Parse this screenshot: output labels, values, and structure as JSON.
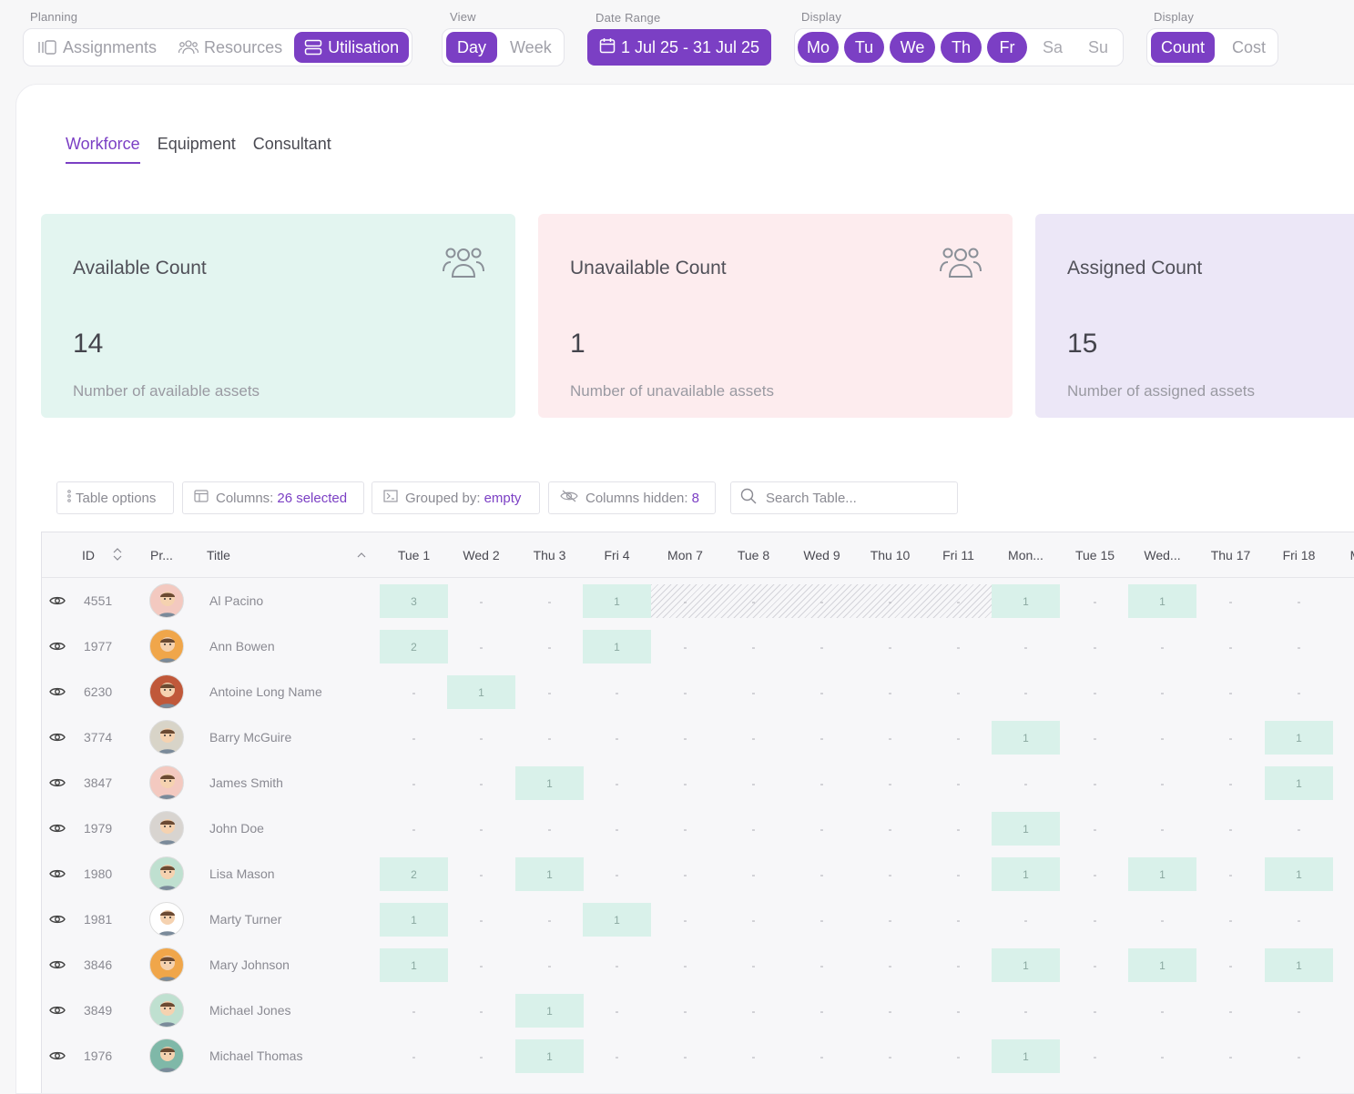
{
  "topbar": {
    "planning": {
      "label": "Planning",
      "items": [
        "Assignments",
        "Resources",
        "Utilisation"
      ],
      "active": 2
    },
    "view": {
      "label": "View",
      "items": [
        "Day",
        "Week"
      ],
      "active": 0
    },
    "date_range": {
      "label": "Date Range",
      "value": "1 Jul 25 - 31 Jul 25"
    },
    "display_days": {
      "label": "Display",
      "items": [
        "Mo",
        "Tu",
        "We",
        "Th",
        "Fr",
        "Sa",
        "Su"
      ],
      "active": [
        0,
        1,
        2,
        3,
        4
      ]
    },
    "display_metric": {
      "label": "Display",
      "items": [
        "Count",
        "Cost"
      ],
      "active": 0
    }
  },
  "tabs": [
    "Workforce",
    "Equipment",
    "Consultant"
  ],
  "cards": [
    {
      "title": "Available Count",
      "value": "14",
      "subtitle": "Number of available assets",
      "bg": "#e3f5f0",
      "icon": "people-icon"
    },
    {
      "title": "Unavailable Count",
      "value": "1",
      "subtitle": "Number of unavailable assets",
      "bg": "#fdecee",
      "icon": "people-icon"
    },
    {
      "title": "Assigned Count",
      "value": "15",
      "subtitle": "Number of assigned assets",
      "bg": "#ece7f7",
      "icon": "people-icon"
    }
  ],
  "toolbar": {
    "table_options": "Table options",
    "columns_label": "Columns:",
    "columns_value": "26 selected",
    "grouped_label": "Grouped by:",
    "grouped_value": "empty",
    "hidden_label": "Columns hidden:",
    "hidden_value": "8",
    "search_placeholder": "Search Table..."
  },
  "table": {
    "headers": {
      "id": "ID",
      "profile": "Pr...",
      "title": "Title"
    },
    "days": [
      "Tue 1",
      "Wed 2",
      "Thu 3",
      "Fri 4",
      "Mon 7",
      "Tue 8",
      "Wed 9",
      "Thu 10",
      "Fri 11",
      "Mon...",
      "Tue 15",
      "Wed...",
      "Thu 17",
      "Fri 18",
      "M"
    ],
    "rows": [
      {
        "id": "4551",
        "name": "Al Pacino",
        "cells": [
          "3",
          "-",
          "-",
          "1",
          "-",
          "-",
          "-",
          "-",
          "-",
          "1",
          "-",
          "1",
          "-",
          "-"
        ],
        "hatch": [
          4,
          8
        ],
        "avatar": "#f3c9c0"
      },
      {
        "id": "1977",
        "name": "Ann Bowen",
        "cells": [
          "2",
          "-",
          "-",
          "1",
          "-",
          "-",
          "-",
          "-",
          "-",
          "-",
          "-",
          "-",
          "-",
          "-"
        ],
        "avatar": "#f0a64a"
      },
      {
        "id": "6230",
        "name": "Antoine Long Name",
        "cells": [
          "-",
          "1",
          "-",
          "-",
          "-",
          "-",
          "-",
          "-",
          "-",
          "-",
          "-",
          "-",
          "-",
          "-"
        ],
        "avatar": "#c0583a"
      },
      {
        "id": "3774",
        "name": "Barry McGuire",
        "cells": [
          "-",
          "-",
          "-",
          "-",
          "-",
          "-",
          "-",
          "-",
          "-",
          "1",
          "-",
          "-",
          "-",
          "1"
        ],
        "avatar": "#d8d4c8"
      },
      {
        "id": "3847",
        "name": "James Smith",
        "cells": [
          "-",
          "-",
          "1",
          "-",
          "-",
          "-",
          "-",
          "-",
          "-",
          "-",
          "-",
          "-",
          "-",
          "1"
        ],
        "avatar": "#f3c9c0"
      },
      {
        "id": "1979",
        "name": "John Doe",
        "cells": [
          "-",
          "-",
          "-",
          "-",
          "-",
          "-",
          "-",
          "-",
          "-",
          "1",
          "-",
          "-",
          "-",
          "-"
        ],
        "avatar": "#d8d4d0"
      },
      {
        "id": "1980",
        "name": "Lisa Mason",
        "cells": [
          "2",
          "-",
          "1",
          "-",
          "-",
          "-",
          "-",
          "-",
          "-",
          "1",
          "-",
          "1",
          "-",
          "1"
        ],
        "avatar": "#bfe0d0"
      },
      {
        "id": "1981",
        "name": "Marty Turner",
        "cells": [
          "1",
          "-",
          "-",
          "1",
          "-",
          "-",
          "-",
          "-",
          "-",
          "-",
          "-",
          "-",
          "-",
          "-"
        ],
        "avatar": "#ffffff"
      },
      {
        "id": "3846",
        "name": "Mary Johnson",
        "cells": [
          "1",
          "-",
          "-",
          "-",
          "-",
          "-",
          "-",
          "-",
          "-",
          "1",
          "-",
          "1",
          "-",
          "1"
        ],
        "avatar": "#f0a64a"
      },
      {
        "id": "3849",
        "name": "Michael Jones",
        "cells": [
          "-",
          "-",
          "1",
          "-",
          "-",
          "-",
          "-",
          "-",
          "-",
          "-",
          "-",
          "-",
          "-",
          "-"
        ],
        "avatar": "#bfe0d0"
      },
      {
        "id": "1976",
        "name": "Michael Thomas",
        "cells": [
          "-",
          "-",
          "1",
          "-",
          "-",
          "-",
          "-",
          "-",
          "-",
          "1",
          "-",
          "-",
          "-",
          "-"
        ],
        "avatar": "#7fb8a8"
      }
    ]
  }
}
